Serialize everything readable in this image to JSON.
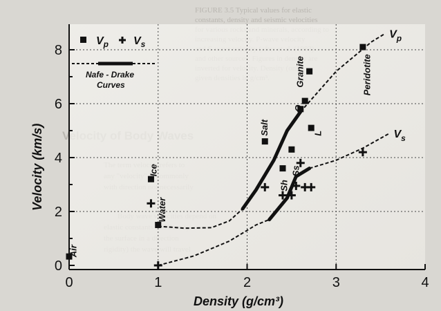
{
  "background_text": [
    "FIGURE 3.5  Typical values for elastic",
    "constants, density and seismic velocities",
    "for various rocks and minerals, according to",
    "increasing velocity. P-wave velocity",
    "and S-wave velocity (after et al. (1983)",
    "and other sources. Figures in density are",
    "inverted for velocity. Density (only",
    "given densities in g/cm³.",
    "Velocity of Body Waves",
    "The term velocity refers to",
    "any \"velocity\" is commonly",
    "with direction not necessarily",
    "Body wave velocities depend on",
    "elastic constants and density",
    "the surface in a direction",
    "rigidity) the wave will travel"
  ],
  "chart_data": {
    "type": "scatter",
    "xlabel": "Density (g/cm³)",
    "ylabel": "Velocity (km/s)",
    "xlim": [
      0,
      4
    ],
    "ylim": [
      -0.5,
      8.8
    ],
    "xticks": [
      "0",
      "1",
      "2",
      "3",
      "4"
    ],
    "yticks": [
      "0",
      "2",
      "4",
      "6",
      "8"
    ],
    "legend": {
      "vp_label": "V",
      "vp_sub": "p",
      "vs_label": "V",
      "vs_sub": "s",
      "curve_label_line1": "Nafe - Drake",
      "curve_label_line2": "Curves"
    },
    "series": [
      {
        "name": "Vp",
        "marker": "square",
        "points": [
          {
            "x": 0.0,
            "y": 0.33
          },
          {
            "x": 0.92,
            "y": 3.2
          },
          {
            "x": 1.0,
            "y": 1.5
          },
          {
            "x": 2.2,
            "y": 4.6
          },
          {
            "x": 2.4,
            "y": 3.6
          },
          {
            "x": 2.5,
            "y": 4.3
          },
          {
            "x": 2.6,
            "y": 5.8
          },
          {
            "x": 2.65,
            "y": 6.1
          },
          {
            "x": 2.7,
            "y": 7.2
          },
          {
            "x": 2.72,
            "y": 5.1
          },
          {
            "x": 3.3,
            "y": 8.1
          }
        ]
      },
      {
        "name": "Vs",
        "marker": "plus",
        "points": [
          {
            "x": 0.92,
            "y": 2.3
          },
          {
            "x": 1.0,
            "y": 0.0
          },
          {
            "x": 2.2,
            "y": 2.9
          },
          {
            "x": 2.4,
            "y": 2.6
          },
          {
            "x": 2.5,
            "y": 2.6
          },
          {
            "x": 2.55,
            "y": 2.95
          },
          {
            "x": 2.6,
            "y": 3.8
          },
          {
            "x": 2.65,
            "y": 2.9
          },
          {
            "x": 2.72,
            "y": 2.9
          },
          {
            "x": 3.3,
            "y": 4.2
          }
        ]
      }
    ],
    "curves": [
      {
        "name": "Vp curve",
        "label": "V",
        "label_sub": "p",
        "dashed": [
          [
            1.0,
            1.45
          ],
          [
            1.3,
            1.38
          ],
          [
            1.6,
            1.4
          ],
          [
            1.8,
            1.65
          ],
          [
            1.95,
            2.1
          ]
        ],
        "solid": [
          [
            1.95,
            2.1
          ],
          [
            2.1,
            2.8
          ],
          [
            2.3,
            3.9
          ],
          [
            2.45,
            5.0
          ],
          [
            2.6,
            5.7
          ]
        ],
        "dashed_end": [
          [
            2.6,
            5.7
          ],
          [
            3.0,
            7.2
          ],
          [
            3.4,
            8.3
          ],
          [
            3.55,
            8.6
          ]
        ]
      },
      {
        "name": "Vs curve",
        "label": "V",
        "label_sub": "s",
        "dashed": [
          [
            1.0,
            0.0
          ],
          [
            1.4,
            0.35
          ],
          [
            1.8,
            0.9
          ],
          [
            2.1,
            1.5
          ],
          [
            2.25,
            1.7
          ]
        ],
        "solid": [
          [
            2.25,
            1.7
          ],
          [
            2.45,
            2.5
          ],
          [
            2.55,
            3.3
          ],
          [
            2.7,
            3.6
          ]
        ],
        "dashed_end": [
          [
            2.7,
            3.6
          ],
          [
            3.0,
            3.9
          ],
          [
            3.3,
            4.35
          ],
          [
            3.6,
            4.9
          ]
        ]
      }
    ],
    "annotations": [
      {
        "text": "Air",
        "x": 0.05,
        "y": 0.3,
        "rotate": true
      },
      {
        "text": "Water",
        "x": 1.05,
        "y": 1.6,
        "rotate": true
      },
      {
        "text": "Ice",
        "x": 0.95,
        "y": 3.3,
        "rotate": true
      },
      {
        "text": "Salt",
        "x": 2.2,
        "y": 4.8,
        "rotate": true
      },
      {
        "text": "Sh",
        "x": 2.42,
        "y": 2.75,
        "rotate": true
      },
      {
        "text": "Ss",
        "x": 2.55,
        "y": 3.3,
        "rotate": true
      },
      {
        "text": "L",
        "x": 2.8,
        "y": 4.8,
        "rotate": true
      },
      {
        "text": "Q",
        "x": 2.58,
        "y": 5.7,
        "rotate": true
      },
      {
        "text": "Granite",
        "x": 2.6,
        "y": 6.6,
        "rotate": true
      },
      {
        "text": "Peridotite",
        "x": 3.35,
        "y": 6.3,
        "rotate": true
      }
    ]
  }
}
